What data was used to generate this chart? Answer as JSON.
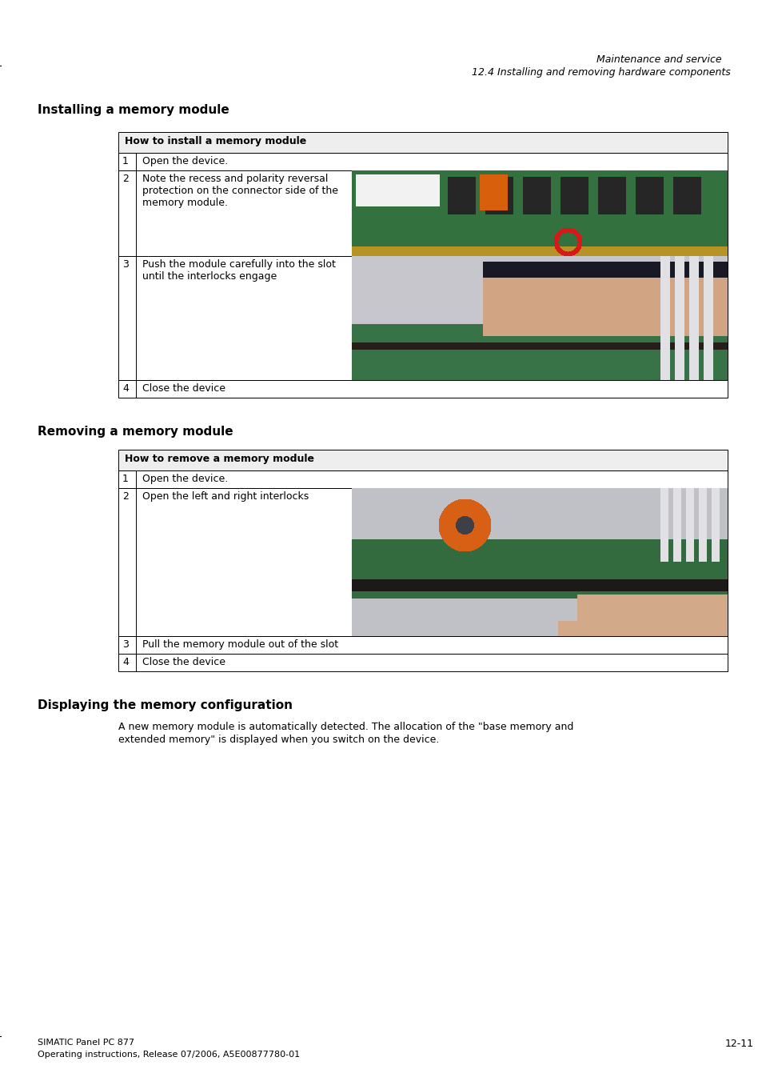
{
  "page_width": 9.54,
  "page_height": 13.51,
  "bg_color": "#ffffff",
  "header_text1": "Maintenance and service",
  "header_text2": "12.4 Installing and removing hardware components",
  "section1_title": "Installing a memory module",
  "table1_title": "How to install a memory module",
  "section2_title": "Removing a memory module",
  "table2_title": "How to remove a memory module",
  "section3_title": "Displaying the memory configuration",
  "section3_body1": "A new memory module is automatically detected. The allocation of the \"base memory and",
  "section3_body2": "extended memory\" is displayed when you switch on the device.",
  "footer_left1": "SIMATIC Panel PC 877",
  "footer_left2": "Operating instructions, Release 07/2006, A5E00877780-01",
  "footer_right": "12-11"
}
